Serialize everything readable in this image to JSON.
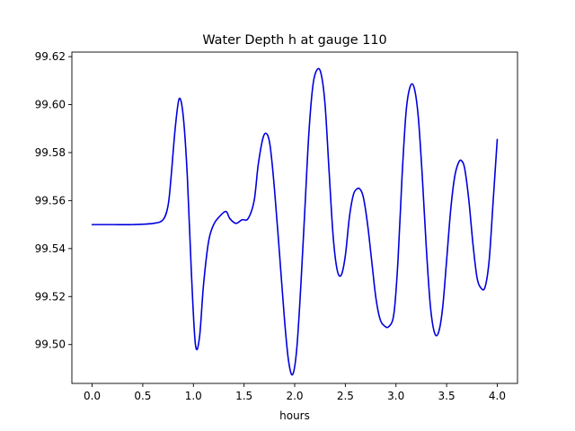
{
  "chart_data": {
    "type": "line",
    "title": "Water Depth h at gauge 110",
    "xlabel": "hours",
    "ylabel": "",
    "xlim": [
      -0.2,
      4.2
    ],
    "ylim": [
      99.4838,
      99.6219
    ],
    "x_ticks": [
      0.0,
      0.5,
      1.0,
      1.5,
      2.0,
      2.5,
      3.0,
      3.5,
      4.0
    ],
    "x_tick_labels": [
      "0.0",
      "0.5",
      "1.0",
      "1.5",
      "2.0",
      "2.5",
      "3.0",
      "3.5",
      "4.0"
    ],
    "y_ticks": [
      99.5,
      99.52,
      99.54,
      99.56,
      99.58,
      99.6,
      99.62
    ],
    "y_tick_labels": [
      "99.50",
      "99.52",
      "99.54",
      "99.56",
      "99.58",
      "99.60",
      "99.62"
    ],
    "grid": false,
    "legend": "none",
    "series": [
      {
        "color": "#0000dd",
        "x": [
          0.0,
          0.2,
          0.4,
          0.6,
          0.7,
          0.75,
          0.78,
          0.82,
          0.86,
          0.9,
          0.94,
          0.98,
          1.02,
          1.06,
          1.1,
          1.15,
          1.2,
          1.25,
          1.32,
          1.36,
          1.42,
          1.48,
          1.54,
          1.6,
          1.64,
          1.69,
          1.73,
          1.76,
          1.8,
          1.85,
          1.9,
          1.94,
          1.98,
          2.02,
          2.06,
          2.1,
          2.14,
          2.18,
          2.22,
          2.26,
          2.3,
          2.34,
          2.38,
          2.42,
          2.46,
          2.5,
          2.54,
          2.58,
          2.62,
          2.65,
          2.68,
          2.72,
          2.76,
          2.8,
          2.84,
          2.88,
          2.93,
          2.98,
          3.02,
          3.06,
          3.1,
          3.14,
          3.18,
          3.22,
          3.26,
          3.3,
          3.34,
          3.38,
          3.42,
          3.46,
          3.5,
          3.54,
          3.58,
          3.62,
          3.65,
          3.68,
          3.72,
          3.76,
          3.8,
          3.84,
          3.88,
          3.92,
          3.96,
          4.0
        ],
        "y": [
          99.55,
          99.55,
          99.55,
          99.5505,
          99.552,
          99.558,
          99.57,
          99.59,
          99.6025,
          99.595,
          99.57,
          99.53,
          99.5,
          99.503,
          99.525,
          99.543,
          99.55,
          99.553,
          99.5555,
          99.5525,
          99.5505,
          99.552,
          99.5525,
          99.56,
          99.575,
          99.5865,
          99.5875,
          99.582,
          99.565,
          99.538,
          99.51,
          99.493,
          99.4875,
          99.498,
          99.524,
          99.556,
          99.588,
          99.608,
          99.6145,
          99.613,
          99.6,
          99.572,
          99.545,
          99.531,
          99.529,
          99.537,
          99.553,
          99.5625,
          99.565,
          99.5645,
          99.561,
          99.55,
          99.535,
          99.52,
          99.511,
          99.508,
          99.5075,
          99.513,
          99.535,
          99.57,
          99.597,
          99.6075,
          99.607,
          99.595,
          99.57,
          99.54,
          99.516,
          99.505,
          99.505,
          99.515,
          99.535,
          99.556,
          99.57,
          99.576,
          99.5765,
          99.573,
          99.56,
          99.542,
          99.528,
          99.5235,
          99.524,
          99.535,
          99.56,
          99.5855
        ]
      }
    ]
  }
}
